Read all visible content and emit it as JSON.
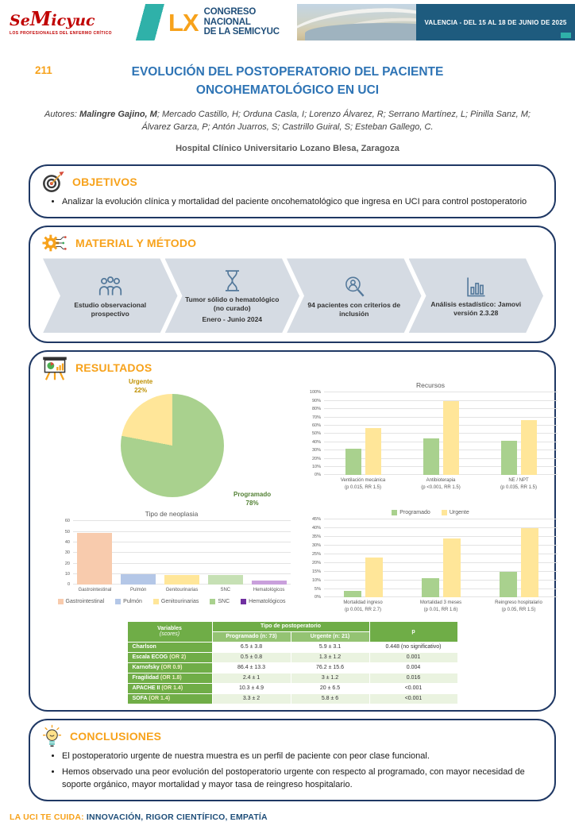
{
  "header": {
    "logo_title_pre": "Se",
    "logo_title_m": "M",
    "logo_title_post": "icyuc",
    "logo_subtitle": "LOS PROFESIONALES DEL ENFERMO CRÍTICO",
    "congress_number": "LX",
    "congress_line1": "CONGRESO NACIONAL",
    "congress_line2": "DE LA SEMICYUC",
    "venue": "VALENCIA - DEL 15 AL 18 DE JUNIO DE 2025"
  },
  "poster": {
    "number": "211",
    "title": "EVOLUCIÓN DEL POSTOPERATORIO DEL PACIENTE ONCOHEMATOLÓGICO EN UCI",
    "authors_prefix": "Autores: ",
    "first_author": "Malingre Gajino, M",
    "authors_rest": "; Mercado Castillo, H; Orduna Casla, I; Lorenzo Álvarez, R; Serrano Martínez, L; Pinilla Sanz, M; Álvarez Garza, P; Antón Juarros, S; Castrillo Guiral, S; Esteban Gallego, C.",
    "affiliation": "Hospital Clínico Universitario Lozano Blesa, Zaragoza"
  },
  "objetivos": {
    "icon": "target-icon",
    "heading": "OBJETIVOS",
    "bullets": [
      "Analizar la evolución clínica y mortalidad del paciente oncohematológico que ingresa en UCI para control postoperatorio"
    ]
  },
  "metodo": {
    "icon": "gear-icon",
    "heading": "MATERIAL Y MÉTODO",
    "steps": [
      {
        "icon": "people-icon",
        "lines": [
          "Estudio observacional prospectivo"
        ]
      },
      {
        "icon": "hourglass-icon",
        "lines": [
          "Tumor sólido o hematológico (no curado)",
          "Enero - Junio 2024"
        ]
      },
      {
        "icon": "magnifier-person-icon",
        "lines": [
          "94 pacientes con criterios de inclusión"
        ]
      },
      {
        "icon": "bar-chart-icon",
        "lines": [
          "Análisis estadístico: Jamovi versión 2.3.28"
        ]
      }
    ]
  },
  "resultados": {
    "icon": "presentation-chart-icon",
    "heading": "RESULTADOS"
  },
  "chart_data": [
    {
      "type": "pie",
      "name": "tipo-postoperatorio",
      "slices": [
        {
          "label": "Programado",
          "value": 78,
          "color": "#A9D18E",
          "label_color": "#538135"
        },
        {
          "label": "Urgente",
          "value": 22,
          "color": "#FFE699",
          "label_color": "#BF9000"
        }
      ]
    },
    {
      "type": "bar",
      "name": "recursos",
      "title": "Recursos",
      "categories": [
        "Ventilación mecánica\n(p 0.015, RR 1.5)",
        "Antibioterapia\n(p <0.001, RR 1.5)",
        "NE / NPT\n(p 0.035, RR 1.5)"
      ],
      "series": [
        {
          "name": "Programado",
          "color": "#A9D18E",
          "values": [
            32,
            45,
            42
          ]
        },
        {
          "name": "Urgente",
          "color": "#FFE699",
          "values": [
            57,
            90,
            67
          ]
        }
      ],
      "ylim": [
        0,
        100
      ],
      "ytick_step": 10,
      "percent": true,
      "legend": false,
      "grid": true
    },
    {
      "type": "bar",
      "name": "tipo-neoplasia",
      "title": "Tipo de neoplasia",
      "categories": [
        "Gastrointestinal",
        "Pulmón",
        "Genitourinarias",
        "SNC",
        "Hematológicos"
      ],
      "values": [
        49,
        10,
        9,
        9,
        4
      ],
      "colors": [
        "#F8CBAD",
        "#B4C7E7",
        "#FFE699",
        "#C6E0B4",
        "#C9A0DC"
      ],
      "legend_colors": [
        "#F8CBAD",
        "#B4C7E7",
        "#FFE699",
        "#A9D18E",
        "#7030A0"
      ],
      "ylim": [
        0,
        60
      ],
      "ytick_step": 10,
      "percent": false,
      "legend": true,
      "legend_pos": "bottom",
      "grid": true
    },
    {
      "type": "bar",
      "name": "evolucion-postoperatoria",
      "categories": [
        "Mortalidad ingreso\n(p 0.001, RR 2.7)",
        "Mortalidad 3 meses\n(p 0.01, RR 1.6)",
        "Reingreso hospitalario\n(p 0.05, RR 1.5)"
      ],
      "series": [
        {
          "name": "Programado",
          "color": "#A9D18E",
          "values": [
            4,
            11,
            15
          ]
        },
        {
          "name": "Urgente",
          "color": "#FFE699",
          "values": [
            23,
            34,
            40
          ]
        }
      ],
      "ylim": [
        0,
        45
      ],
      "ytick_step": 5,
      "percent": true,
      "legend": true,
      "legend_pos": "top",
      "grid": true
    }
  ],
  "table": {
    "col1_header": "Variables",
    "col1_subheader": "(scores)",
    "group_header": "Tipo de postoperatorio",
    "sub_headers": [
      "Programado (n: 73)",
      "Urgente (n: 21)"
    ],
    "p_header": "p",
    "rows": [
      {
        "variable": "Charlson",
        "or": "",
        "programado": "6.5 ± 3.8",
        "urgente": "5.9 ± 3.1",
        "p": "0.448 (no significativo)"
      },
      {
        "variable": "Escala ECOG",
        "or": " (OR 2)",
        "programado": "0.5 ± 0.8",
        "urgente": "1.3 ± 1.2",
        "p": "0.001"
      },
      {
        "variable": "Karnofsky",
        "or": " (OR 0.9)",
        "programado": "86.4 ± 13.3",
        "urgente": "76.2 ± 15.6",
        "p": "0.004"
      },
      {
        "variable": "Fragilidad",
        "or": " (OR 1.8)",
        "programado": "2.4 ± 1",
        "urgente": "3 ± 1.2",
        "p": "0.016"
      },
      {
        "variable": "APACHE II",
        "or": " (OR 1.4)",
        "programado": "10.3 ± 4.9",
        "urgente": "20 ± 6.5",
        "p": "<0.001"
      },
      {
        "variable": "SOFA",
        "or": " (OR 1.4)",
        "programado": "3.3 ± 2",
        "urgente": "5.8 ± 6",
        "p": "<0.001"
      }
    ]
  },
  "conclusiones": {
    "icon": "lightbulb-icon",
    "heading": "CONCLUSIONES",
    "bullets": [
      "El postoperatorio urgente de nuestra muestra es un perfil de paciente con peor clase funcional.",
      "Hemos observado una peor evolución del postoperatorio urgente con respecto al programado, con mayor necesidad de soporte orgánico, mayor mortalidad y mayor tasa de reingreso hospitalario."
    ]
  },
  "footer": {
    "lead": "LA UCI TE CUIDA:",
    "tagline": " INNOVACIÓN, RIGOR CIENTÍFICO, EMPATÍA"
  }
}
